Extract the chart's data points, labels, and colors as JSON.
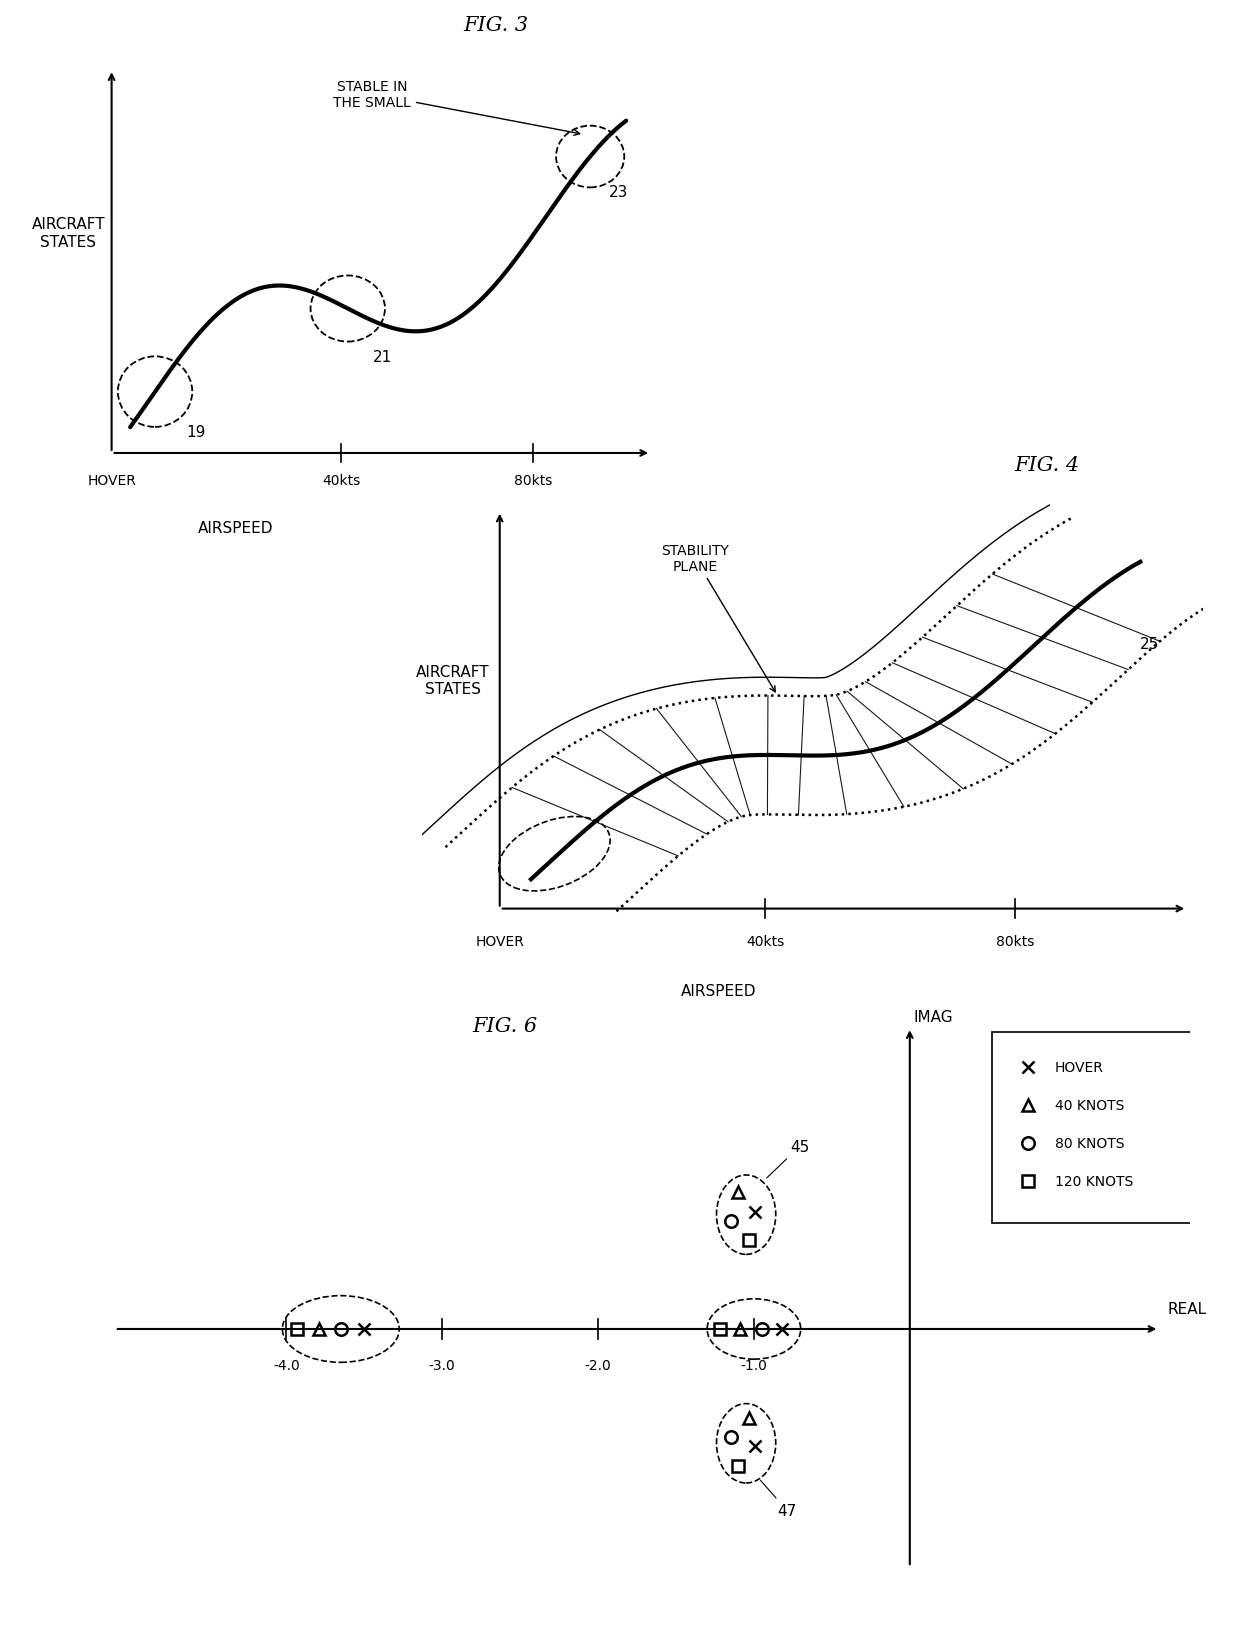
{
  "bg_color": "#ffffff",
  "fig3": {
    "title": "FIG. 3",
    "ylabel": "AIRCRAFT\nSTATES",
    "xlabel": "AIRSPEED",
    "xtick_labels": [
      "HOVER",
      "40kts",
      "80kts"
    ],
    "label19": "19",
    "label21": "21",
    "label23": "23",
    "stable_label": "STABLE IN\nTHE SMALL"
  },
  "fig4": {
    "title": "FIG. 4",
    "ylabel": "AIRCRAFT\nSTATES",
    "xlabel": "AIRSPEED",
    "xtick_labels": [
      "HOVER",
      "40kts",
      "80kts"
    ],
    "stability_label": "STABILITY\nPLANE",
    "label25": "25"
  },
  "fig6": {
    "title": "FIG. 6",
    "xlabel": "REAL",
    "ylabel": "IMAG",
    "xtick_labels": [
      "-4.0",
      "-3.0",
      "-2.0",
      "-1.0"
    ],
    "xtick_vals": [
      -4.0,
      -3.0,
      -2.0,
      -1.0
    ],
    "label45": "45",
    "label47": "47"
  }
}
